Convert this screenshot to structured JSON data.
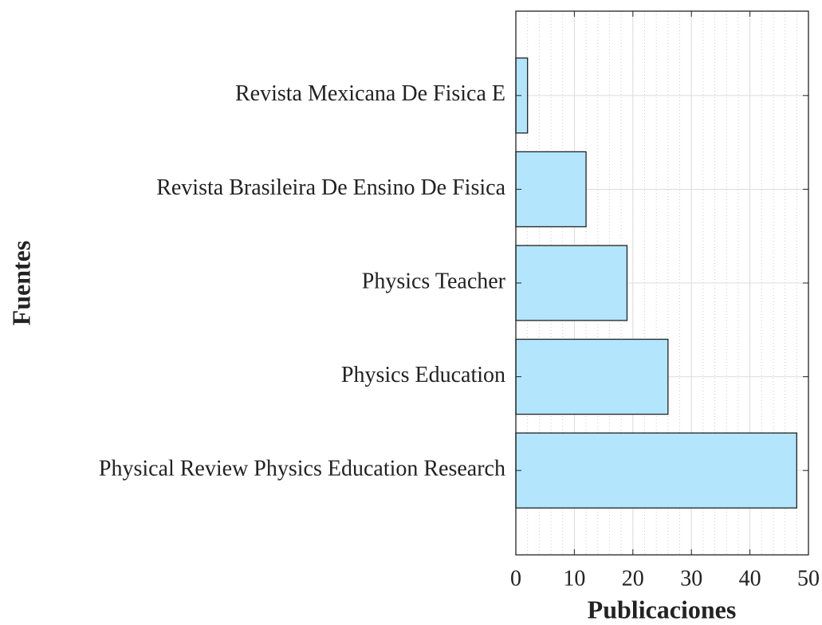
{
  "chart_data": {
    "type": "hbar",
    "categories": [
      "Revista Mexicana De Fisica E",
      "Revista Brasileira De Ensino De Fisica",
      "Physics Teacher",
      "Physics Education",
      "Physical Review Physics Education Research"
    ],
    "values": [
      2,
      12,
      19,
      26,
      48
    ],
    "color": "#b3e5fc",
    "xlabel": "Publicaciones",
    "ylabel": "Fuentes",
    "xlim": [
      0,
      50
    ],
    "xticks": [
      0,
      10,
      20,
      30,
      40,
      50
    ],
    "grid": true,
    "minor_grid": true
  }
}
